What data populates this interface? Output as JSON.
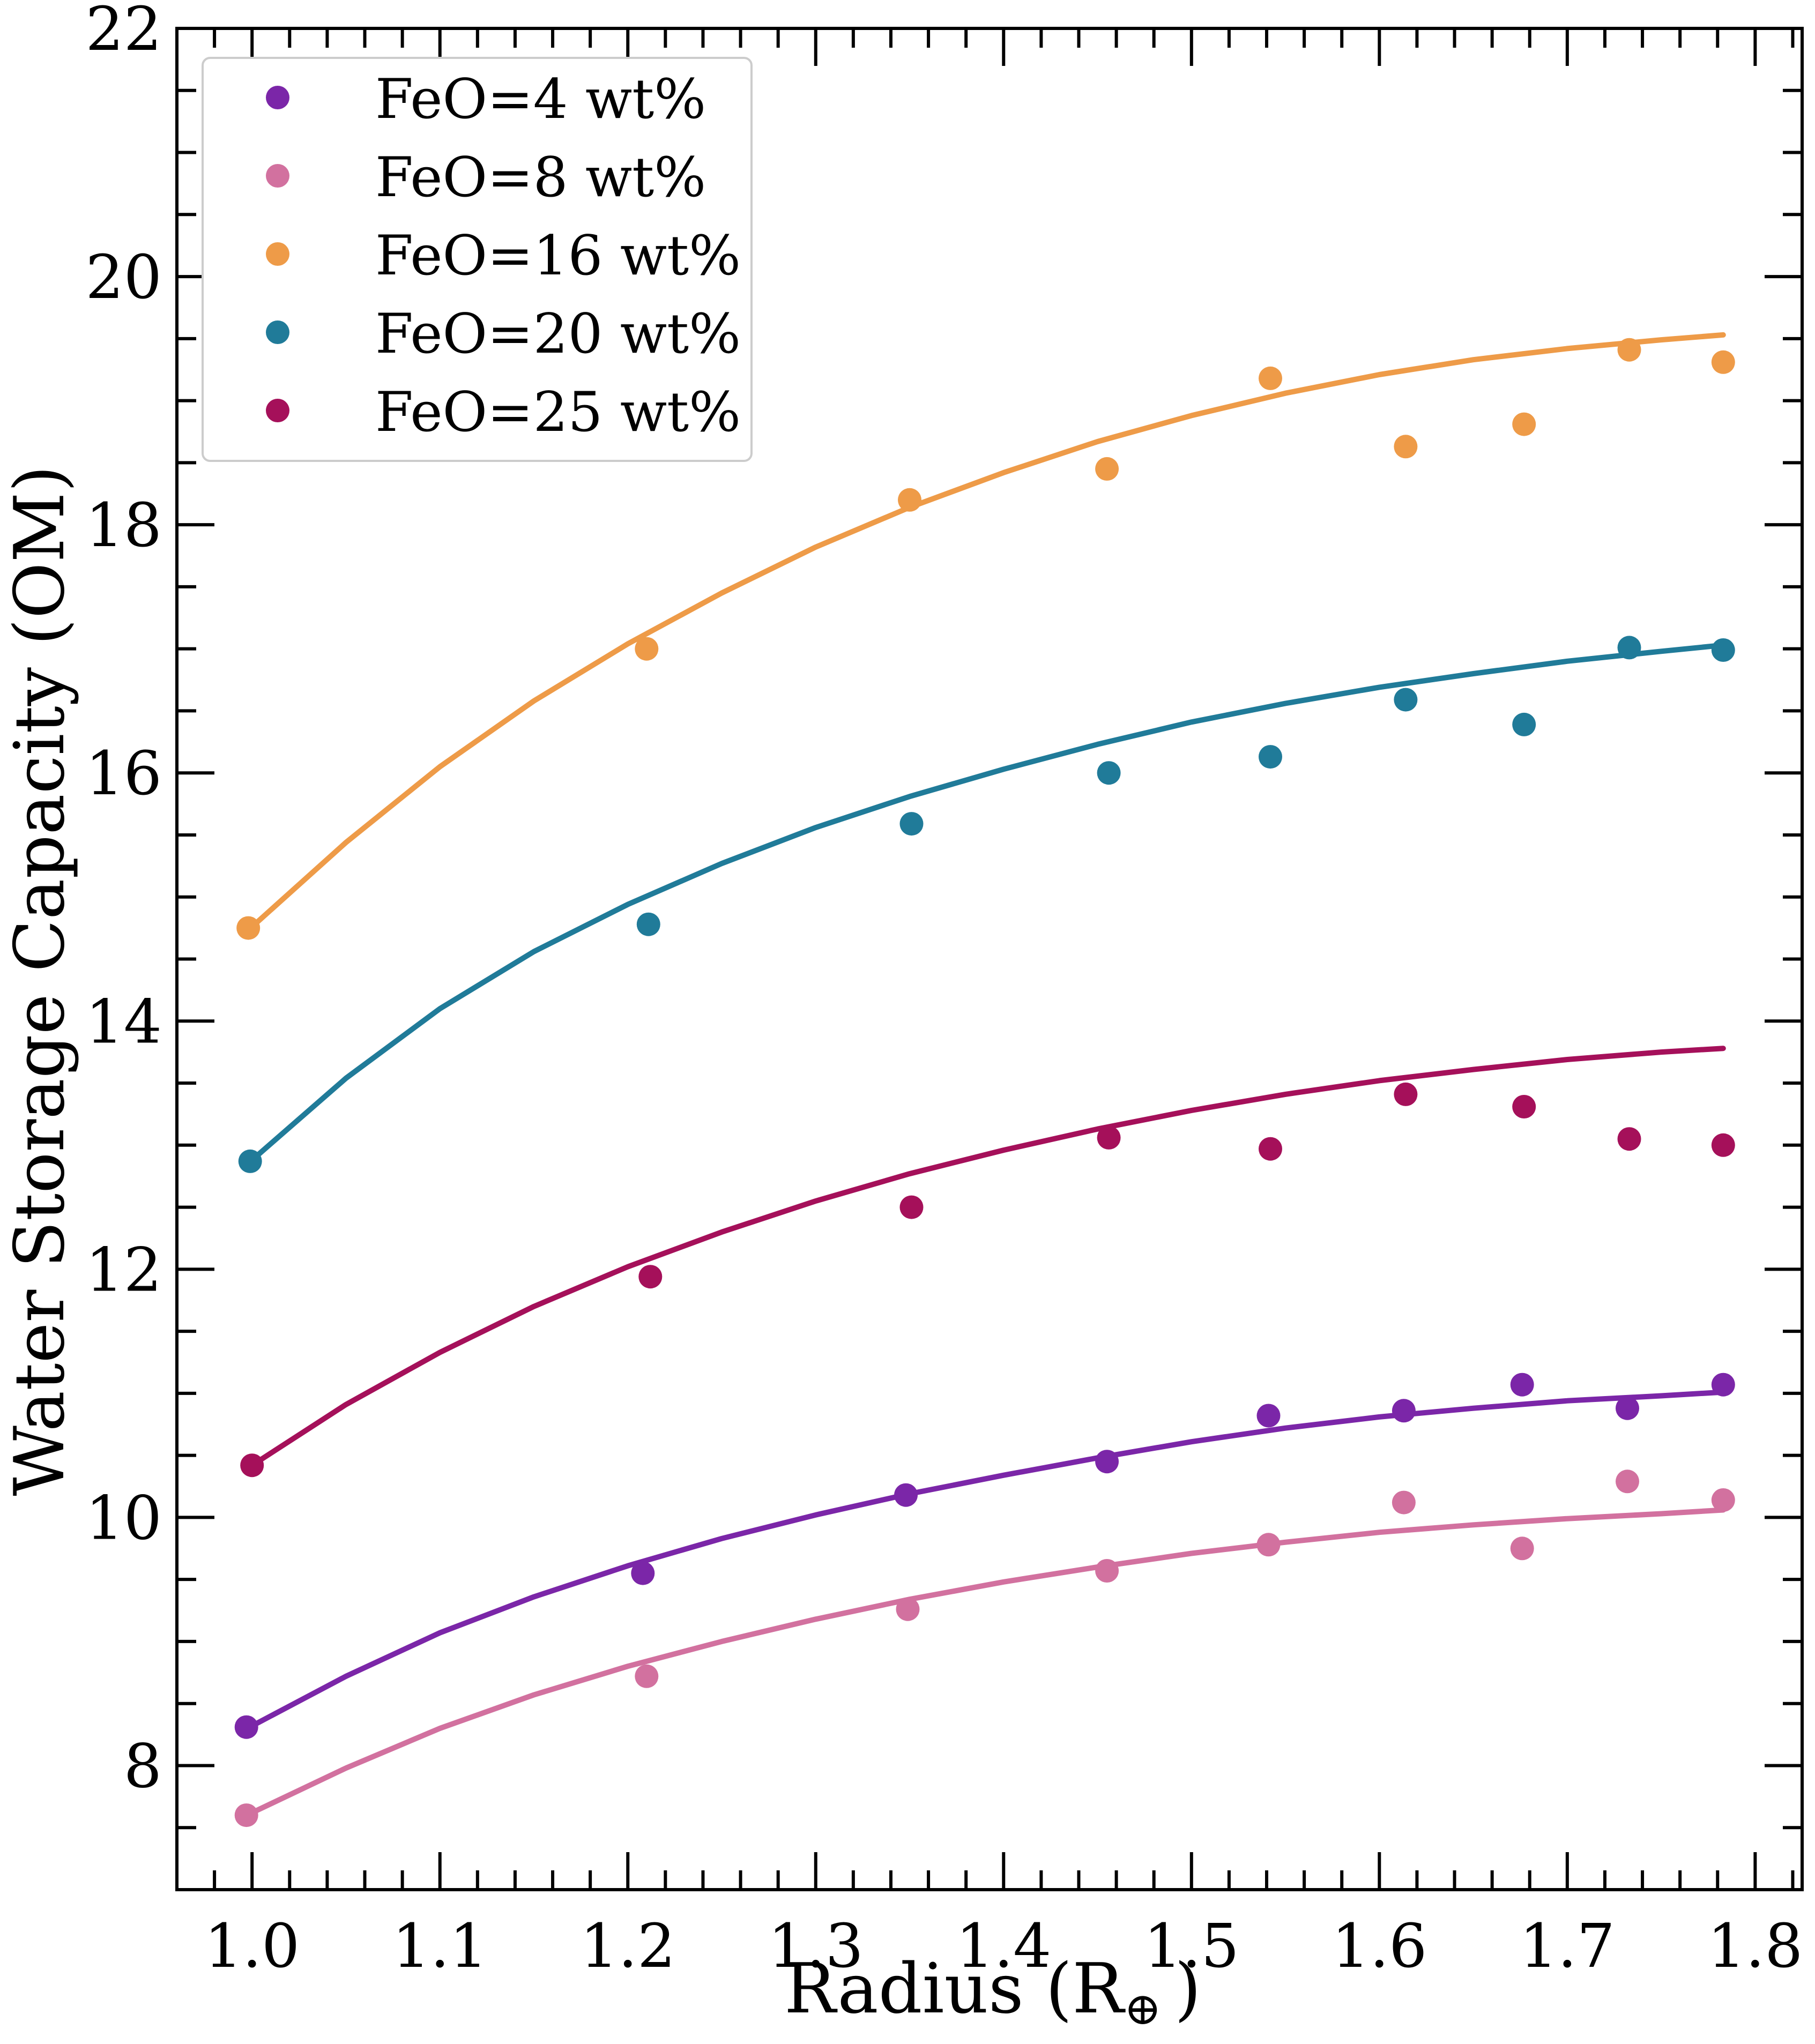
{
  "chart_data": {
    "type": "scatter",
    "title": "",
    "xlabel": "Radius (R",
    "xlabel_sub": "⊕",
    "xlabel_close": ")",
    "ylabel": "Water Storage Capacity (OM)",
    "xlim": [
      0.96,
      1.825
    ],
    "ylim": [
      7.0,
      22.0
    ],
    "x_ticks": [
      1.0,
      1.1,
      1.2,
      1.3,
      1.4,
      1.5,
      1.6,
      1.7,
      1.8
    ],
    "x_tick_labels": [
      "1.0",
      "1.1",
      "1.2",
      "1.3",
      "1.4",
      "1.5",
      "1.6",
      "1.7",
      "1.8"
    ],
    "y_ticks": [
      8,
      10,
      12,
      14,
      16,
      18,
      20,
      22
    ],
    "y_tick_labels": [
      "8",
      "10",
      "12",
      "14",
      "16",
      "18",
      "20",
      "22"
    ],
    "legend_position": "top-left",
    "series": [
      {
        "name": "FeO=4 wt%",
        "color": "#7b26a8",
        "x": [
          0.997,
          1.208,
          1.348,
          1.455,
          1.541,
          1.613,
          1.676,
          1.732,
          1.783
        ],
        "y": [
          8.31,
          9.55,
          10.18,
          10.45,
          10.82,
          10.86,
          11.07,
          10.88,
          11.07
        ],
        "fit_x": [
          1.0,
          1.05,
          1.1,
          1.15,
          1.2,
          1.25,
          1.3,
          1.35,
          1.4,
          1.45,
          1.5,
          1.55,
          1.6,
          1.65,
          1.7,
          1.75,
          1.783
        ],
        "fit_y": [
          8.32,
          8.72,
          9.07,
          9.36,
          9.61,
          9.83,
          10.02,
          10.19,
          10.34,
          10.48,
          10.61,
          10.72,
          10.81,
          10.88,
          10.94,
          10.98,
          11.01
        ]
      },
      {
        "name": "FeO=8 wt%",
        "color": "#d2719f",
        "x": [
          0.997,
          1.21,
          1.349,
          1.455,
          1.541,
          1.613,
          1.676,
          1.732,
          1.783
        ],
        "y": [
          7.6,
          8.72,
          9.26,
          9.57,
          9.78,
          10.12,
          9.75,
          10.29,
          10.14
        ],
        "fit_x": [
          1.0,
          1.05,
          1.1,
          1.15,
          1.2,
          1.25,
          1.3,
          1.35,
          1.4,
          1.45,
          1.5,
          1.55,
          1.6,
          1.65,
          1.7,
          1.75,
          1.783
        ],
        "fit_y": [
          7.62,
          7.98,
          8.3,
          8.57,
          8.8,
          9.0,
          9.18,
          9.34,
          9.48,
          9.6,
          9.71,
          9.8,
          9.88,
          9.94,
          9.99,
          10.03,
          10.06
        ]
      },
      {
        "name": "FeO=16 wt%",
        "color": "#ee9b48",
        "x": [
          0.998,
          1.21,
          1.35,
          1.455,
          1.542,
          1.614,
          1.677,
          1.733,
          1.783
        ],
        "y": [
          14.75,
          17.0,
          18.2,
          18.45,
          19.18,
          18.63,
          18.81,
          19.41,
          19.31
        ],
        "fit_x": [
          1.0,
          1.05,
          1.1,
          1.15,
          1.2,
          1.25,
          1.3,
          1.35,
          1.4,
          1.45,
          1.5,
          1.55,
          1.6,
          1.65,
          1.7,
          1.75,
          1.783
        ],
        "fit_y": [
          14.76,
          15.44,
          16.05,
          16.58,
          17.04,
          17.45,
          17.82,
          18.14,
          18.42,
          18.67,
          18.88,
          19.06,
          19.21,
          19.33,
          19.42,
          19.49,
          19.53
        ]
      },
      {
        "name": "FeO=20 wt%",
        "color": "#207b99",
        "x": [
          0.999,
          1.211,
          1.351,
          1.456,
          1.542,
          1.614,
          1.677,
          1.733,
          1.783
        ],
        "y": [
          12.87,
          14.78,
          15.59,
          16.0,
          16.13,
          16.59,
          16.39,
          17.01,
          16.99
        ],
        "fit_x": [
          1.0,
          1.05,
          1.1,
          1.15,
          1.2,
          1.25,
          1.3,
          1.35,
          1.4,
          1.45,
          1.5,
          1.55,
          1.6,
          1.65,
          1.7,
          1.75,
          1.783
        ],
        "fit_y": [
          12.88,
          13.54,
          14.1,
          14.56,
          14.94,
          15.27,
          15.56,
          15.81,
          16.03,
          16.23,
          16.41,
          16.56,
          16.69,
          16.8,
          16.9,
          16.98,
          17.03
        ]
      },
      {
        "name": "FeO=25 wt%",
        "color": "#a5105a",
        "x": [
          1.0,
          1.212,
          1.351,
          1.456,
          1.542,
          1.614,
          1.677,
          1.733,
          1.783
        ],
        "y": [
          10.42,
          11.94,
          12.5,
          13.06,
          12.97,
          13.41,
          13.31,
          13.05,
          13.0
        ],
        "fit_x": [
          1.0,
          1.05,
          1.1,
          1.15,
          1.2,
          1.25,
          1.3,
          1.35,
          1.4,
          1.45,
          1.5,
          1.55,
          1.6,
          1.65,
          1.7,
          1.75,
          1.783
        ],
        "fit_y": [
          10.42,
          10.91,
          11.33,
          11.7,
          12.02,
          12.3,
          12.55,
          12.77,
          12.96,
          13.13,
          13.28,
          13.41,
          13.52,
          13.61,
          13.69,
          13.75,
          13.78
        ]
      }
    ]
  }
}
